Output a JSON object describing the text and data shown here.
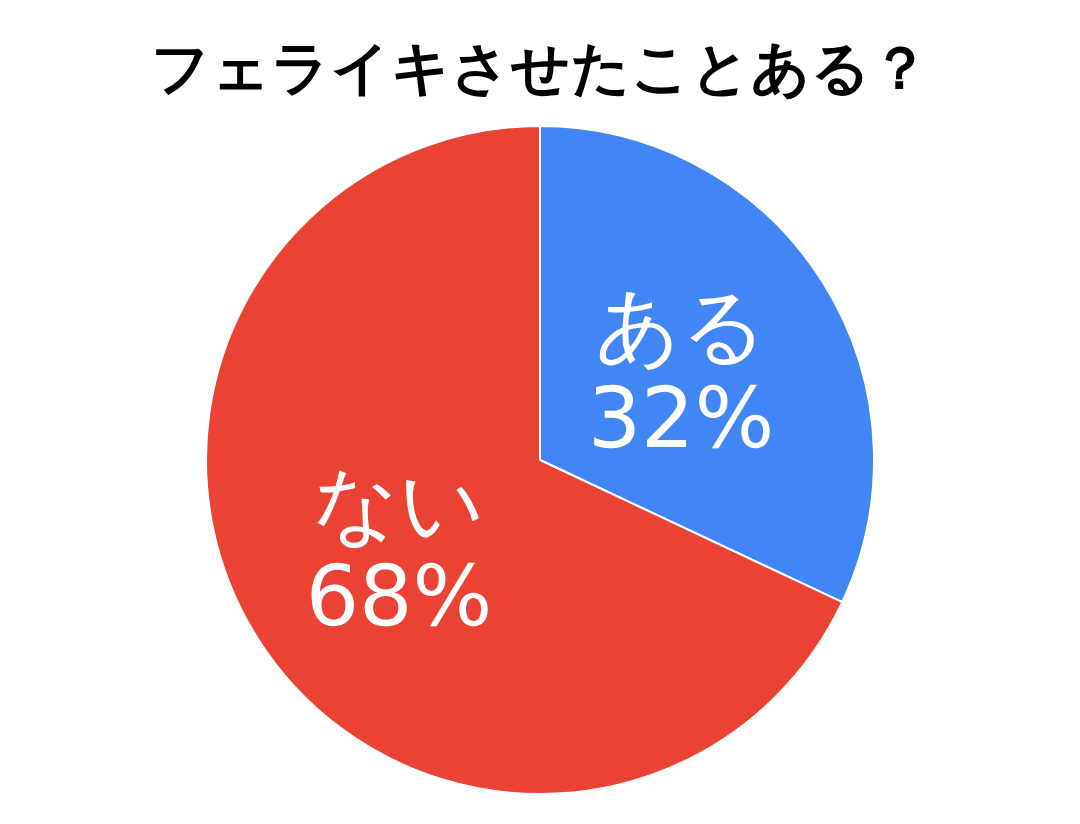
{
  "chart_data": {
    "type": "pie",
    "title": "フェライキさせたことある？",
    "categories": [
      "ある",
      "ない"
    ],
    "values": [
      32,
      68
    ],
    "colors": [
      "#4285f4",
      "#ea4335"
    ],
    "value_labels": [
      "32%",
      "68%"
    ]
  }
}
